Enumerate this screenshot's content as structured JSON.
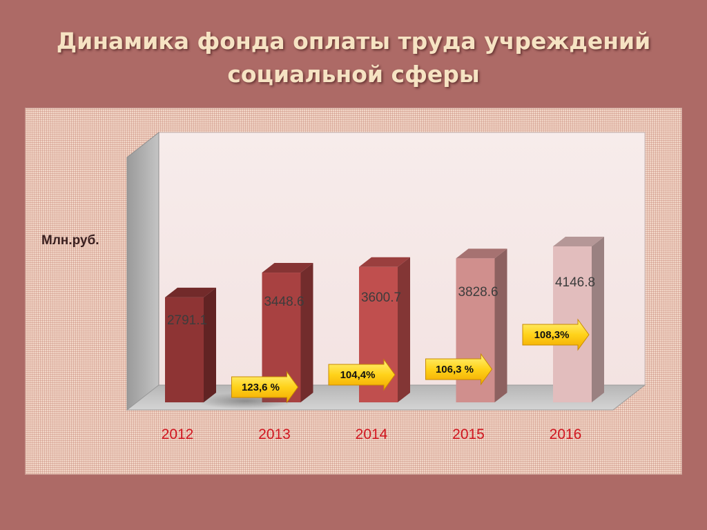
{
  "title": {
    "line1": "Динамика фонда оплаты труда учреждений",
    "line2": "социальной сферы"
  },
  "colors": {
    "background": "#ad6a66",
    "title": "#f6e3c3",
    "tick": "#d0141e",
    "arrow": "#ffd21a",
    "bars": [
      "#8e3434",
      "#a84141",
      "#c04f4e",
      "#d08f8d",
      "#e2bdbd"
    ]
  },
  "chart_data": {
    "type": "bar",
    "ylabel": "Млн.руб.",
    "xlabel": "",
    "categories": [
      "2012",
      "2013",
      "2014",
      "2015",
      "2016"
    ],
    "values": [
      2791.1,
      3448.6,
      3600.7,
      3828.6,
      4146.8
    ],
    "value_labels": [
      "2791.1",
      "3448.6",
      "3600.7",
      "3828.6",
      "4146.8"
    ],
    "growth_labels": [
      "",
      "123,6 %",
      "104,4%",
      "106,3 %",
      "108,3%"
    ],
    "ylim": [
      0,
      4400
    ],
    "grid": false,
    "style": "3d-column"
  }
}
